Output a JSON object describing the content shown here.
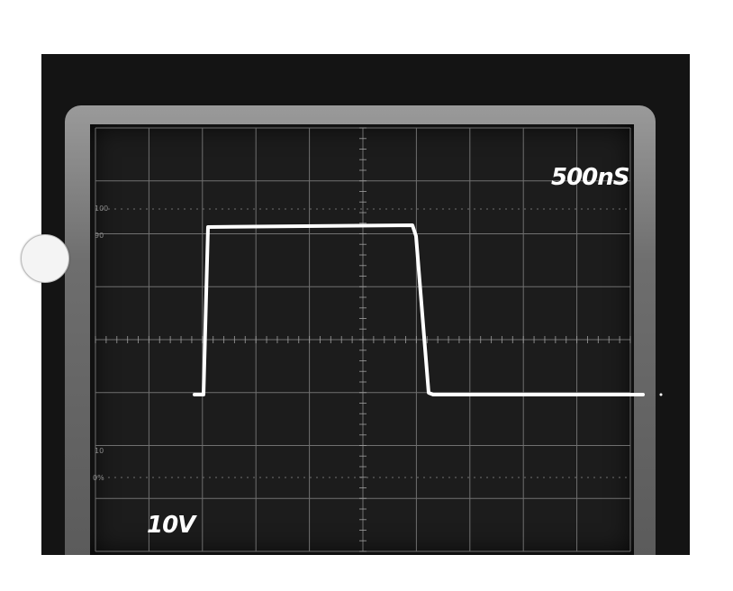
{
  "scope": {
    "timebase_label": "500nS",
    "volts_label": "10V",
    "graticule_marks": {
      "top": "100",
      "upper": "90",
      "lower": "10",
      "bottom": "0%"
    },
    "trace_color": "#ffffff"
  }
}
